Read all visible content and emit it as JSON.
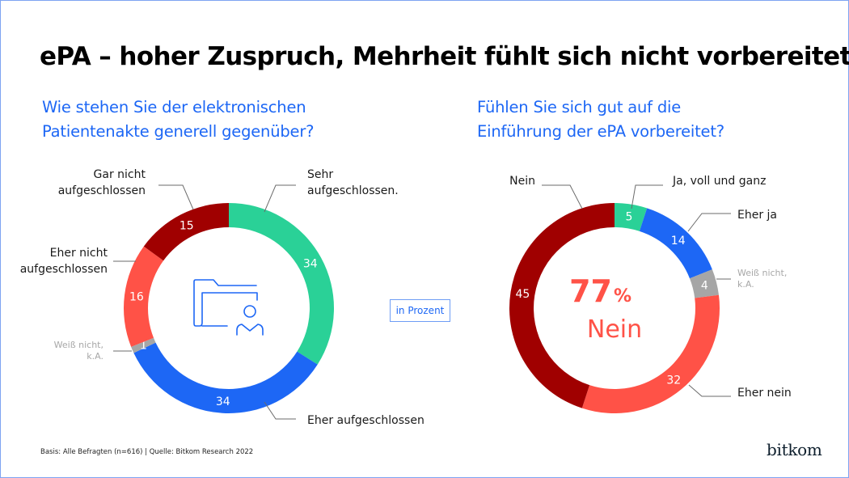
{
  "title": "ePA – hoher Zuspruch, Mehrheit fühlt sich nicht vorbereitet",
  "unit_label": "in Prozent",
  "footer": "Basis: Alle Befragten (n=616) | Quelle: Bitkom Research 2022",
  "logo": "bitkom",
  "center_icon": "folder-person-icon",
  "highlight": {
    "value": "77",
    "suffix": "%",
    "label": "Nein"
  },
  "chart_data": [
    {
      "type": "pie",
      "subtype": "donut",
      "title": "Wie stehen Sie der elektronischen Patientenakte generell gegenüber?",
      "title_lines": [
        "Wie stehen Sie der elektronischen",
        "Patientenakte generell gegenüber?"
      ],
      "unit": "in Prozent",
      "start": "top",
      "direction": "clockwise",
      "slices": [
        {
          "label": "Sehr aufgeschlossen.",
          "label_lines": [
            "Sehr",
            "aufgeschlossen."
          ],
          "value": 34,
          "color": "#2ad197",
          "muted": false
        },
        {
          "label": "Eher aufgeschlossen",
          "label_lines": [
            "Eher aufgeschlossen"
          ],
          "value": 34,
          "color": "#1d67f5",
          "muted": false
        },
        {
          "label": "Weiß nicht, k.A.",
          "label_lines": [
            "Weiß nicht,",
            "k.A."
          ],
          "value": 1,
          "color": "#a6a6a6",
          "muted": true
        },
        {
          "label": "Eher nicht aufgeschlossen",
          "label_lines": [
            "Eher nicht",
            "aufgeschlossen"
          ],
          "value": 16,
          "color": "#ff5247",
          "muted": false
        },
        {
          "label": "Gar nicht aufgeschlossen",
          "label_lines": [
            "Gar nicht",
            "aufgeschlossen"
          ],
          "value": 15,
          "color": "#a00000",
          "muted": false
        }
      ]
    },
    {
      "type": "pie",
      "subtype": "donut",
      "title": "Fühlen Sie sich gut auf die Einführung der ePA vorbereitet?",
      "title_lines": [
        "Fühlen Sie sich gut auf die",
        "Einführung der ePA vorbereitet?"
      ],
      "unit": "in Prozent",
      "start": "top",
      "direction": "clockwise",
      "center_annotation": "77% Nein",
      "slices": [
        {
          "label": "Ja, voll und ganz",
          "label_lines": [
            "Ja, voll und ganz"
          ],
          "value": 5,
          "color": "#2ad197",
          "muted": false
        },
        {
          "label": "Eher ja",
          "label_lines": [
            "Eher ja"
          ],
          "value": 14,
          "color": "#1d67f5",
          "muted": false
        },
        {
          "label": "Weiß nicht, k.A.",
          "label_lines": [
            "Weiß nicht,",
            "k.A."
          ],
          "value": 4,
          "color": "#a6a6a6",
          "muted": true
        },
        {
          "label": "Eher nein",
          "label_lines": [
            "Eher nein"
          ],
          "value": 32,
          "color": "#ff5247",
          "muted": false
        },
        {
          "label": "Nein",
          "label_lines": [
            "Nein"
          ],
          "value": 45,
          "color": "#a00000",
          "muted": false
        }
      ]
    }
  ]
}
